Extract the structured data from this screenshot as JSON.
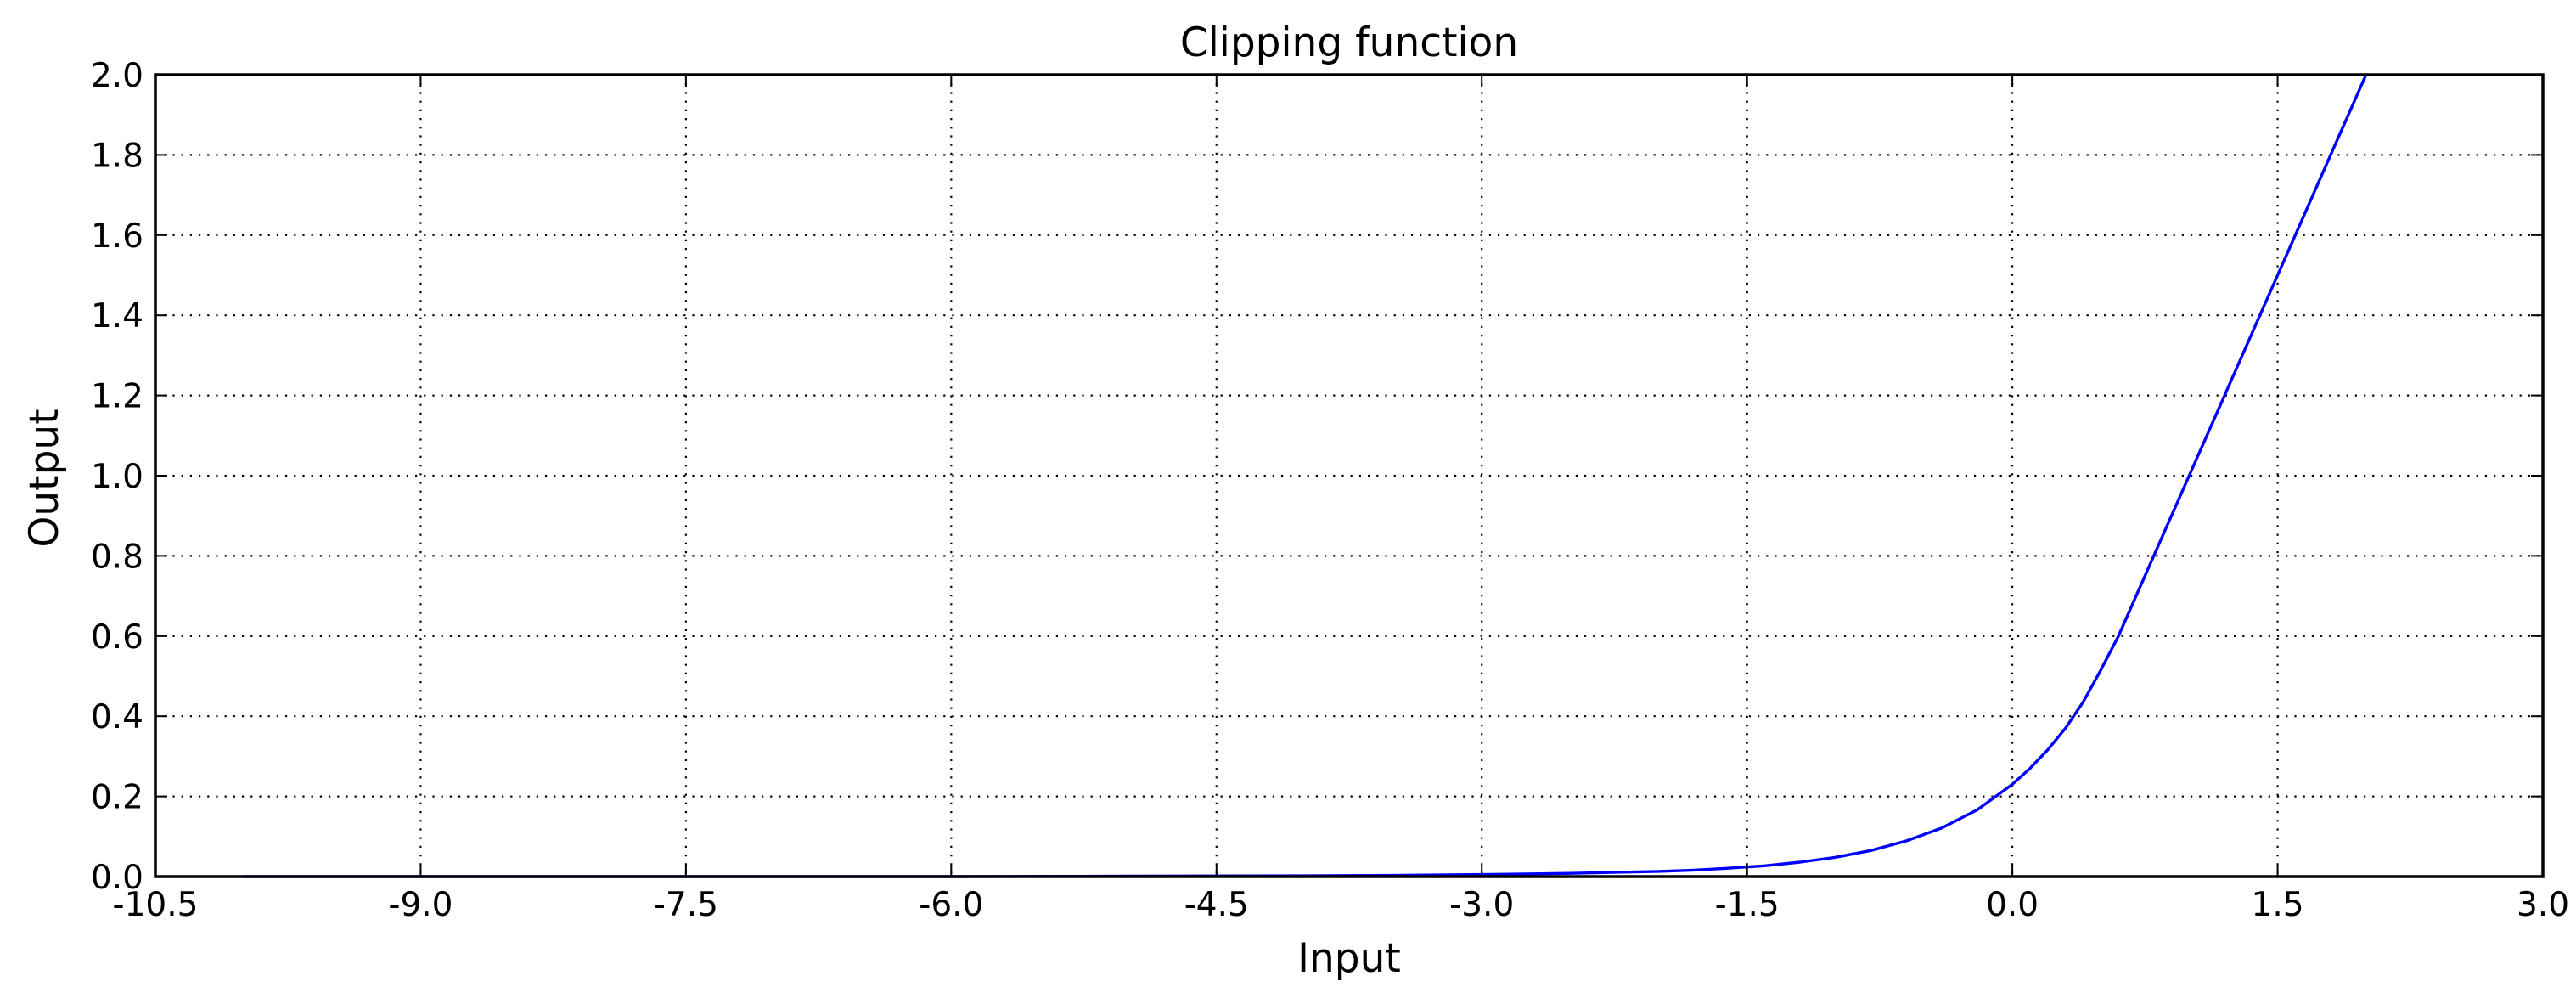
{
  "chart_data": {
    "type": "line",
    "title": "Clipping function",
    "xlabel": "Input",
    "ylabel": "Output",
    "xlim": [
      -10.5,
      3.0
    ],
    "ylim": [
      0.0,
      2.0
    ],
    "xticks": [
      "-10.5",
      "-9.0",
      "-7.5",
      "-6.0",
      "-4.5",
      "-3.0",
      "-1.5",
      "0.0",
      "1.5",
      "3.0"
    ],
    "yticks": [
      "0.0",
      "0.2",
      "0.4",
      "0.6",
      "0.8",
      "1.0",
      "1.2",
      "1.4",
      "1.6",
      "1.8",
      "2.0"
    ],
    "grid": true,
    "grid_style": "dotted",
    "series": [
      {
        "color": "#0000ff",
        "x": [
          -10.0,
          -9.0,
          -8.0,
          -7.0,
          -6.0,
          -5.0,
          -4.0,
          -3.5,
          -3.0,
          -2.5,
          -2.0,
          -1.8,
          -1.6,
          -1.4,
          -1.2,
          -1.0,
          -0.8,
          -0.6,
          -0.4,
          -0.2,
          0.0,
          0.1,
          0.2,
          0.3,
          0.4,
          0.5,
          0.6,
          0.8,
          1.0,
          1.2,
          1.4,
          1.6,
          1.8,
          2.0
        ],
        "y": [
          0.0,
          0.0,
          0.0,
          0.0,
          0.0,
          0.001,
          0.002,
          0.003,
          0.005,
          0.008,
          0.013,
          0.016,
          0.021,
          0.027,
          0.036,
          0.048,
          0.065,
          0.089,
          0.121,
          0.166,
          0.23,
          0.27,
          0.316,
          0.37,
          0.435,
          0.515,
          0.6,
          0.8,
          1.0,
          1.2,
          1.4,
          1.6,
          1.8,
          2.0
        ]
      }
    ]
  }
}
